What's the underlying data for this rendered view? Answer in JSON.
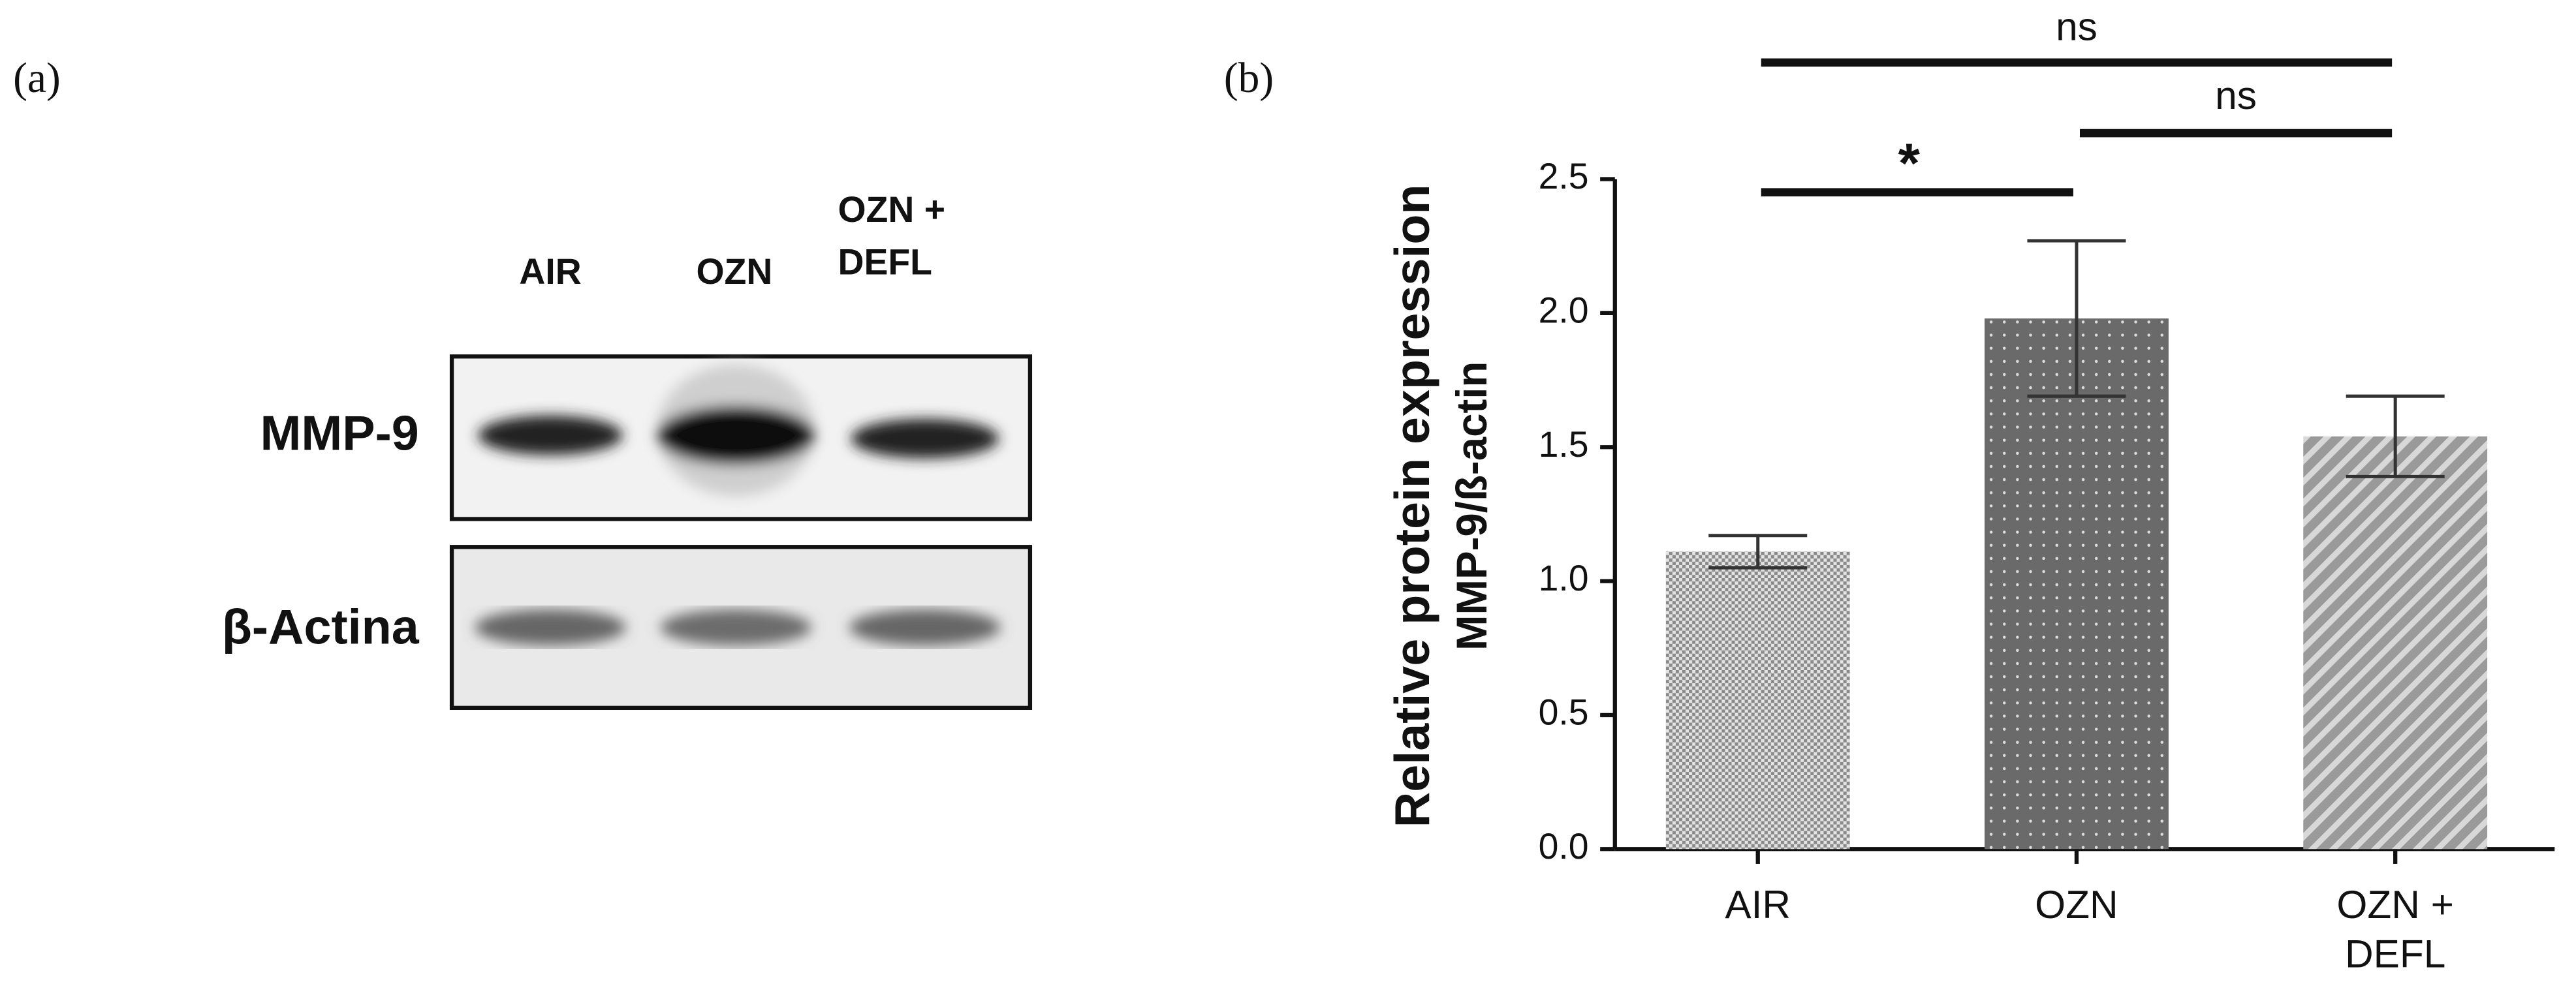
{
  "panel_a": {
    "label": "(a)",
    "lanes": [
      "AIR",
      "OZN",
      "OZN + DEFL"
    ],
    "rows": [
      "MMP-9",
      "β-Actina"
    ]
  },
  "chart_data": {
    "type": "bar",
    "panel_label": "(b)",
    "ylabel": [
      "Relative  protein expression",
      "MMP-9/ß-actin"
    ],
    "categories": [
      "AIR",
      "OZN",
      "OZN + DEFL"
    ],
    "values": [
      1.11,
      1.98,
      1.54
    ],
    "errors": [
      0.06,
      0.29,
      0.15
    ],
    "color": "#777777",
    "ylim": [
      0,
      2.5
    ],
    "yticks": [
      {
        "value": 0,
        "label": "0.0"
      },
      {
        "value": 0.5,
        "label": "0.5"
      },
      {
        "value": 1,
        "label": "1.0"
      },
      {
        "value": 1.5,
        "label": "1.5"
      },
      {
        "value": 2,
        "label": "2.0"
      },
      {
        "value": 2.5,
        "label": "2.5"
      }
    ],
    "annotations": [
      "*",
      "ns",
      "ns"
    ]
  }
}
